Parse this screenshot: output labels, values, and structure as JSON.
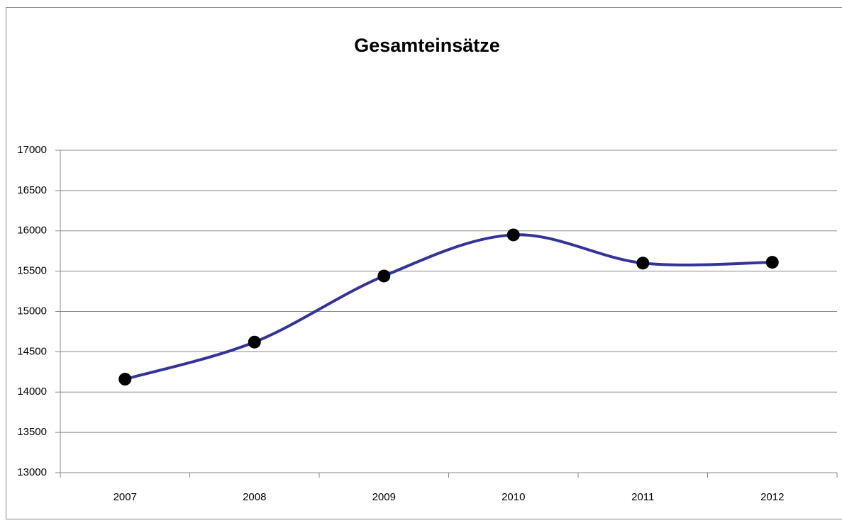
{
  "chart_data": {
    "type": "line",
    "title": "Gesamteinsätze",
    "categories": [
      "2007",
      "2008",
      "2009",
      "2010",
      "2011",
      "2012"
    ],
    "series": [
      {
        "name": "Gesamteinsätze",
        "color": "#333399",
        "values": [
          14160,
          14620,
          15440,
          15950,
          15600,
          15610
        ]
      }
    ],
    "ylim": [
      13000,
      17000
    ],
    "yticks": [
      13000,
      13500,
      14000,
      14500,
      15000,
      15500,
      16000,
      16500,
      17000
    ],
    "grid": true,
    "smooth": true,
    "marker_color": "#000000"
  }
}
